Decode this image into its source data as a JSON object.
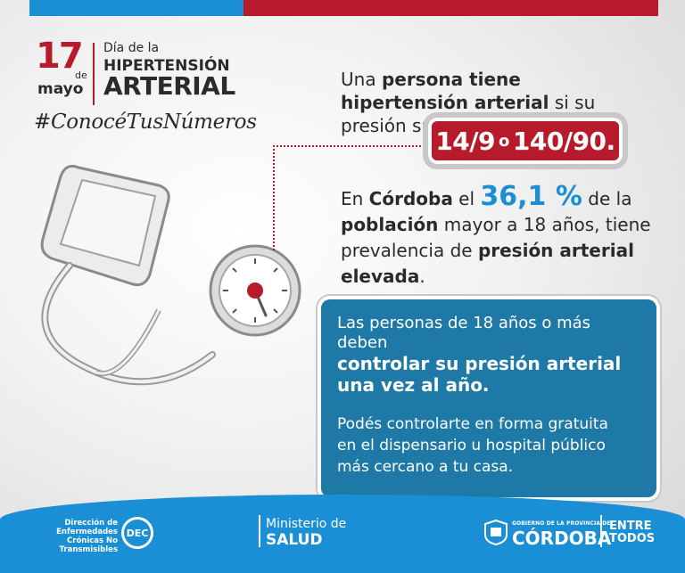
{
  "header": {
    "day": "17",
    "de": "de",
    "month": "mayo",
    "title_line1": "Día de la",
    "title_line2": "HIPERTENSIÓN",
    "title_line3": "ARTERIAL",
    "hashtag": "#ConocéTusNúmeros"
  },
  "info1": {
    "pre": "Una ",
    "bold1": "persona tiene hipertensión arterial",
    "post": " si su presión supera los valores",
    "value_a": "14/9",
    "value_or": "o",
    "value_b": "140/90."
  },
  "info2": {
    "pre": "En ",
    "bold1": "Córdoba",
    "mid1": " el ",
    "pct": "36,1 %",
    "mid2": " de la ",
    "bold2": "población",
    "mid3": " mayor a 18 años, tiene prevalencia de ",
    "bold3": "presión arterial elevada",
    "end": "."
  },
  "card": {
    "line1": "Las personas de 18 años o más deben",
    "line2": "controlar su presión arterial una vez al año.",
    "line3": "Podés controlarte en forma gratuita en el dispensario u hospital público más cercano a tu casa."
  },
  "footer": {
    "dec_text": "Dirección de Enfermedades Crónicas No Transmisibles",
    "dec_logo": "DEC",
    "ministerio": "Ministerio de",
    "salud": "SALUD",
    "gobierno": "GOBIERNO DE LA PROVINCIA DE",
    "cordoba": "CÓRDOBA",
    "entre": "ENTRE",
    "todos": "TODOS"
  },
  "colors": {
    "red": "#b71b2b",
    "blue": "#1a8fd6",
    "card_blue": "#1e79a6"
  }
}
